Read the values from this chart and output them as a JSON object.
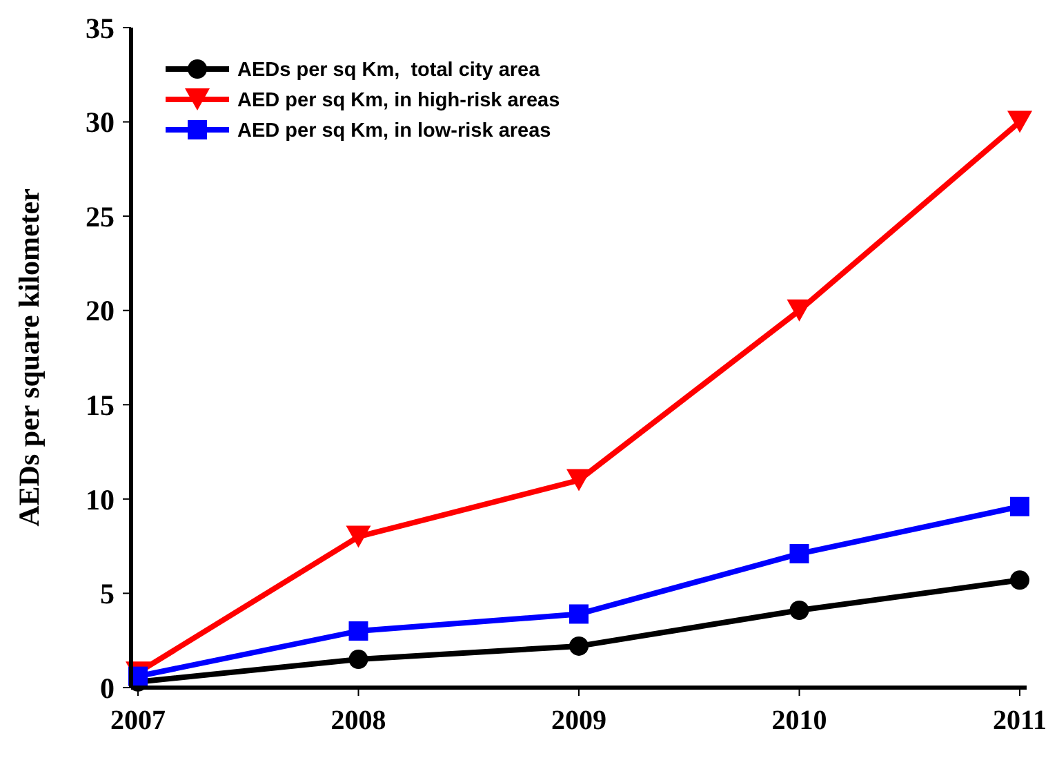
{
  "chart_data": {
    "type": "line",
    "ylabel": "AEDs per square kilometer",
    "categories": [
      "2007",
      "2008",
      "2009",
      "2010",
      "2011"
    ],
    "ylim": [
      0,
      35
    ],
    "yticks": [
      0,
      5,
      10,
      15,
      20,
      25,
      30,
      35
    ],
    "grid": false,
    "legend": "top left",
    "line_style": "solid",
    "series": [
      {
        "name": "AEDs per sq Km,  total city area",
        "color": "#000000",
        "marker": "circle",
        "values": [
          0.3,
          1.5,
          2.2,
          4.1,
          5.7
        ]
      },
      {
        "name": "AED per sq Km, in high-risk areas",
        "color": "#ff0000",
        "marker": "triangle",
        "values": [
          0.8,
          8,
          11,
          20,
          30
        ]
      },
      {
        "name": "AED per sq Km, in low-risk areas",
        "color": "#0000ff",
        "marker": "square",
        "values": [
          0.6,
          3,
          3.9,
          7.1,
          9.6
        ]
      }
    ]
  }
}
